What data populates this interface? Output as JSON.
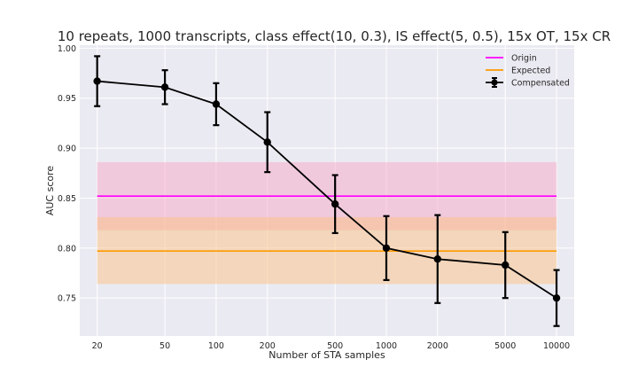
{
  "chart_data": {
    "type": "line",
    "title": "10 repeats, 1000 transcripts, class effect(10, 0.3), IS effect(5, 0.5), 15x OT, 15x CR",
    "xlabel": "Number of STA samples",
    "ylabel": "AUC score",
    "xscale": "log",
    "xlim": [
      15.8,
      12700
    ],
    "ylim": [
      0.712,
      1.003
    ],
    "x_ticks": [
      20,
      50,
      100,
      200,
      500,
      1000,
      2000,
      5000,
      10000
    ],
    "x_tick_labels": [
      "20",
      "50",
      "100",
      "200",
      "500",
      "1000",
      "2000",
      "5000",
      "10000"
    ],
    "y_ticks": [
      0.75,
      0.8,
      0.85,
      0.9,
      0.95,
      1.0
    ],
    "y_tick_labels": [
      "0.75",
      "0.80",
      "0.85",
      "0.90",
      "0.95",
      "1.00"
    ],
    "grid": true,
    "legend_position": "top-right",
    "bands": [
      {
        "name": "Origin",
        "x_range": [
          20,
          10000
        ],
        "value": 0.852,
        "lower": 0.818,
        "upper": 0.886,
        "color": "#ff00ff",
        "fill": "#f7a7c8"
      },
      {
        "name": "Expected",
        "x_range": [
          20,
          10000
        ],
        "value": 0.797,
        "lower": 0.764,
        "upper": 0.831,
        "color": "#ff9900",
        "fill": "#fbc183"
      }
    ],
    "series": [
      {
        "name": "Compensated",
        "color": "#000000",
        "x": [
          20,
          50,
          100,
          200,
          500,
          1000,
          2000,
          5000,
          10000
        ],
        "y": [
          0.967,
          0.961,
          0.944,
          0.906,
          0.844,
          0.8,
          0.789,
          0.783,
          0.75
        ],
        "err": [
          0.025,
          0.017,
          0.021,
          0.03,
          0.029,
          0.032,
          0.044,
          0.033,
          0.028
        ]
      }
    ],
    "legend": [
      "Origin",
      "Expected",
      "Compensated"
    ]
  }
}
